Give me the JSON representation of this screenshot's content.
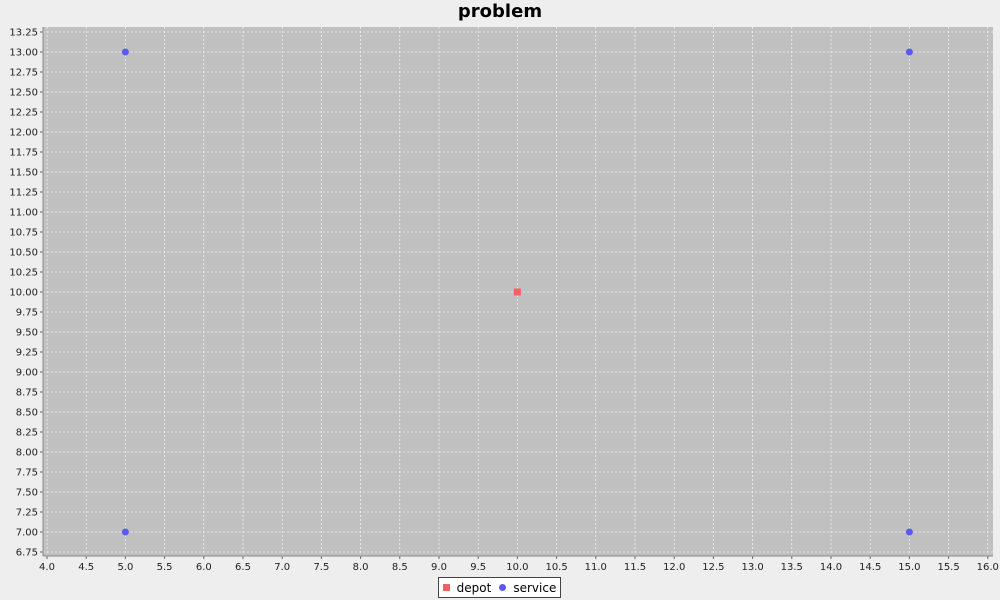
{
  "chart_data": {
    "type": "scatter",
    "title": "problem",
    "xlabel": "",
    "ylabel": "",
    "xlim": [
      4.0,
      16.0
    ],
    "ylim": [
      6.75,
      13.25
    ],
    "x_ticks": [
      "4.0",
      "4.5",
      "5.0",
      "5.5",
      "6.0",
      "6.5",
      "7.0",
      "7.5",
      "8.0",
      "8.5",
      "9.0",
      "9.5",
      "10.0",
      "10.5",
      "11.0",
      "11.5",
      "12.0",
      "12.5",
      "13.0",
      "13.5",
      "14.0",
      "14.5",
      "15.0",
      "15.5",
      "16.0"
    ],
    "y_ticks": [
      "6.75",
      "7.00",
      "7.25",
      "7.50",
      "7.75",
      "8.00",
      "8.25",
      "8.50",
      "8.75",
      "9.00",
      "9.25",
      "9.50",
      "9.75",
      "10.00",
      "10.25",
      "10.50",
      "10.75",
      "11.00",
      "11.25",
      "11.50",
      "11.75",
      "12.00",
      "12.25",
      "12.50",
      "12.75",
      "13.00",
      "13.25"
    ],
    "grid": true,
    "legend_position": "bottom-center",
    "series": [
      {
        "name": "depot",
        "marker": "square",
        "color": "#f06262",
        "points": [
          [
            10.0,
            10.0
          ]
        ]
      },
      {
        "name": "service",
        "marker": "circle",
        "color": "#5a5af0",
        "points": [
          [
            5.0,
            13.0
          ],
          [
            15.0,
            13.0
          ],
          [
            5.0,
            7.0
          ],
          [
            15.0,
            7.0
          ]
        ]
      }
    ]
  },
  "colors": {
    "plot_background": "#c0c0c0",
    "grid": "#ffffff",
    "page_background": "#eeeeee"
  }
}
